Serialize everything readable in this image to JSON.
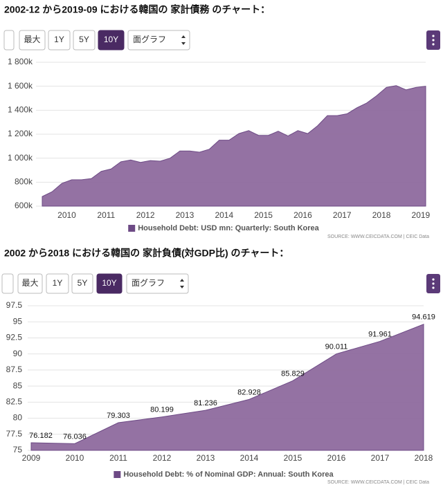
{
  "chart_data": [
    {
      "type": "area",
      "title": "2002-12 から2019-09 における韓国の 家計債務 のチャート：",
      "buttons": [
        "最大",
        "1Y",
        "5Y",
        "10Y"
      ],
      "active_button": 3,
      "select": "面グラフ",
      "x": [
        2009.375,
        2009.625,
        2009.875,
        2010.125,
        2010.375,
        2010.625,
        2010.875,
        2011.125,
        2011.375,
        2011.625,
        2011.875,
        2012.125,
        2012.375,
        2012.625,
        2012.875,
        2013.125,
        2013.375,
        2013.625,
        2013.875,
        2014.125,
        2014.375,
        2014.625,
        2014.875,
        2015.125,
        2015.375,
        2015.625,
        2015.875,
        2016.125,
        2016.375,
        2016.625,
        2016.875,
        2017.125,
        2017.375,
        2017.625,
        2017.875,
        2018.125,
        2018.375,
        2018.625,
        2018.875,
        2019.125
      ],
      "series": [
        {
          "name": "Household Debt: USD mn: Quarterly: South Korea",
          "color": "#8e6a9e",
          "values": [
            680000,
            720000,
            790000,
            820000,
            820000,
            830000,
            890000,
            910000,
            970000,
            985000,
            965000,
            980000,
            975000,
            1000000,
            1060000,
            1060000,
            1050000,
            1075000,
            1150000,
            1150000,
            1205000,
            1230000,
            1190000,
            1190000,
            1225000,
            1185000,
            1230000,
            1205000,
            1270000,
            1355000,
            1355000,
            1370000,
            1420000,
            1460000,
            1520000,
            1590000,
            1605000,
            1570000,
            1590000,
            1600000
          ]
        }
      ],
      "xlim": [
        2009.375,
        2019.125
      ],
      "xticks": [
        2010,
        2011,
        2012,
        2013,
        2014,
        2015,
        2016,
        2017,
        2018,
        2019
      ],
      "ylim": [
        600000,
        1800000
      ],
      "yticks": [
        {
          "value": 1800000,
          "label": "1 800k"
        },
        {
          "value": 1600000,
          "label": "1 600k"
        },
        {
          "value": 1400000,
          "label": "1 400k"
        },
        {
          "value": 1200000,
          "label": "1 200k"
        },
        {
          "value": 1000000,
          "label": "1 000k"
        },
        {
          "value": 800000,
          "label": "800k"
        },
        {
          "value": 600000,
          "label": "600k"
        }
      ],
      "grid": true,
      "data_labels": false,
      "source": "SOURCE: WWW.CEICDATA.COM | CEIC Data"
    },
    {
      "type": "area",
      "title": "2002 から2018 における韓国の 家計負債(対GDP比) のチャート：",
      "buttons": [
        "最大",
        "1Y",
        "5Y",
        "10Y"
      ],
      "active_button": 3,
      "select": "面グラフ",
      "x": [
        2009,
        2010,
        2011,
        2012,
        2013,
        2014,
        2015,
        2016,
        2017,
        2018
      ],
      "series": [
        {
          "name": "Household Debt: % of Nominal GDP: Annual: South Korea",
          "color": "#8e6a9e",
          "values": [
            76.182,
            76.036,
            79.303,
            80.199,
            81.236,
            82.928,
            85.829,
            90.011,
            91.961,
            94.619
          ]
        }
      ],
      "xlim": [
        2009,
        2018
      ],
      "xticks": [
        2009,
        2010,
        2011,
        2012,
        2013,
        2014,
        2015,
        2016,
        2017,
        2018
      ],
      "ylim": [
        75,
        97.5
      ],
      "yticks": [
        97.5,
        95,
        92.5,
        90,
        87.5,
        85,
        82.5,
        80,
        77.5,
        75
      ],
      "grid": true,
      "data_labels": true,
      "source": "SOURCE: WWW.CEICDATA.COM | CEIC Data"
    }
  ]
}
